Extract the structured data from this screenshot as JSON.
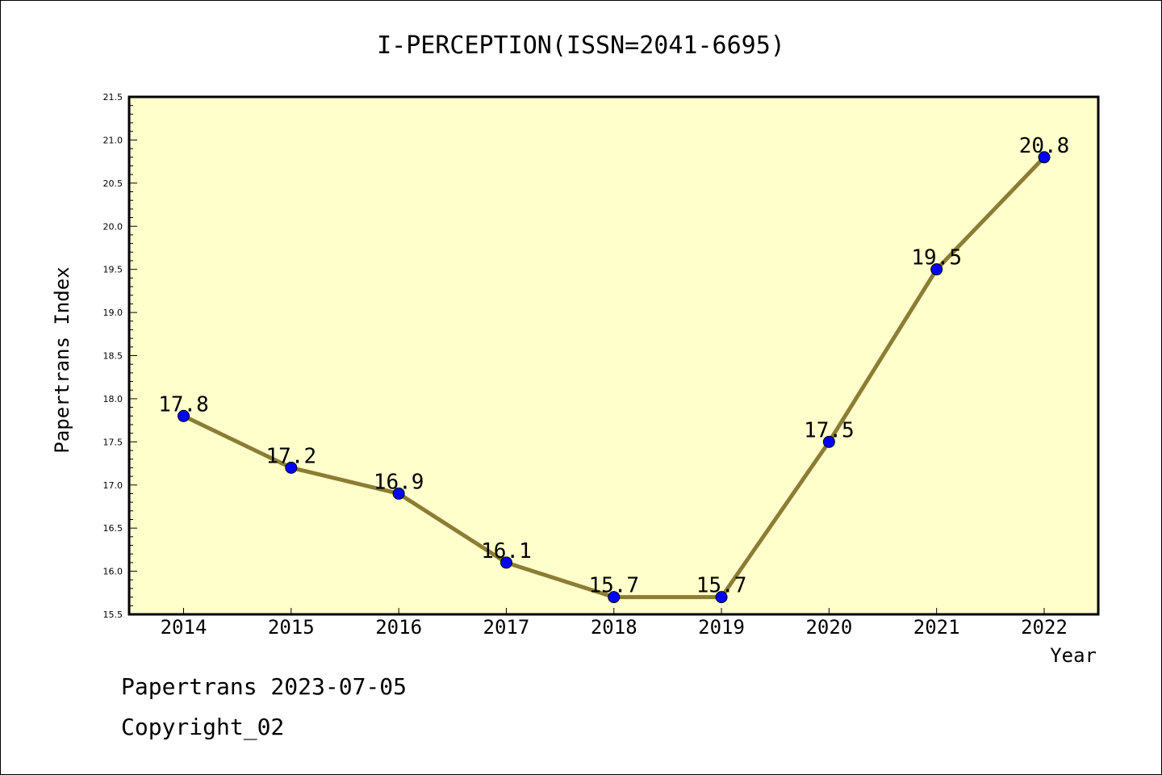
{
  "chart_data": {
    "type": "line",
    "title": "I-PERCEPTION(ISSN=2041-6695)",
    "xlabel": "Year",
    "ylabel": "Papertrans Index",
    "x": [
      "2014",
      "2015",
      "2016",
      "2017",
      "2018",
      "2019",
      "2020",
      "2021",
      "2022"
    ],
    "series": [
      {
        "values": [
          17.8,
          17.2,
          16.9,
          16.1,
          15.7,
          15.7,
          17.5,
          19.5,
          20.8
        ],
        "labels": [
          "17.8",
          "17.2",
          "16.9",
          "16.1",
          "15.7",
          "15.7",
          "17.5",
          "19.5",
          "20.8"
        ]
      }
    ],
    "ylim": [
      15.5,
      21.5
    ],
    "yticks": [
      "15.5",
      "16.0",
      "16.5",
      "17.0",
      "17.5",
      "18.0",
      "18.5",
      "19.0",
      "19.5",
      "20.0",
      "20.5",
      "21.0",
      "21.5"
    ],
    "grid": false,
    "colors": {
      "plot_background": "#ffffcc",
      "line": "#8b7d34",
      "marker": "#0000ff"
    }
  },
  "footer": {
    "date_text": "Papertrans 2023-07-05",
    "copyright_text": "Copyright_02"
  }
}
